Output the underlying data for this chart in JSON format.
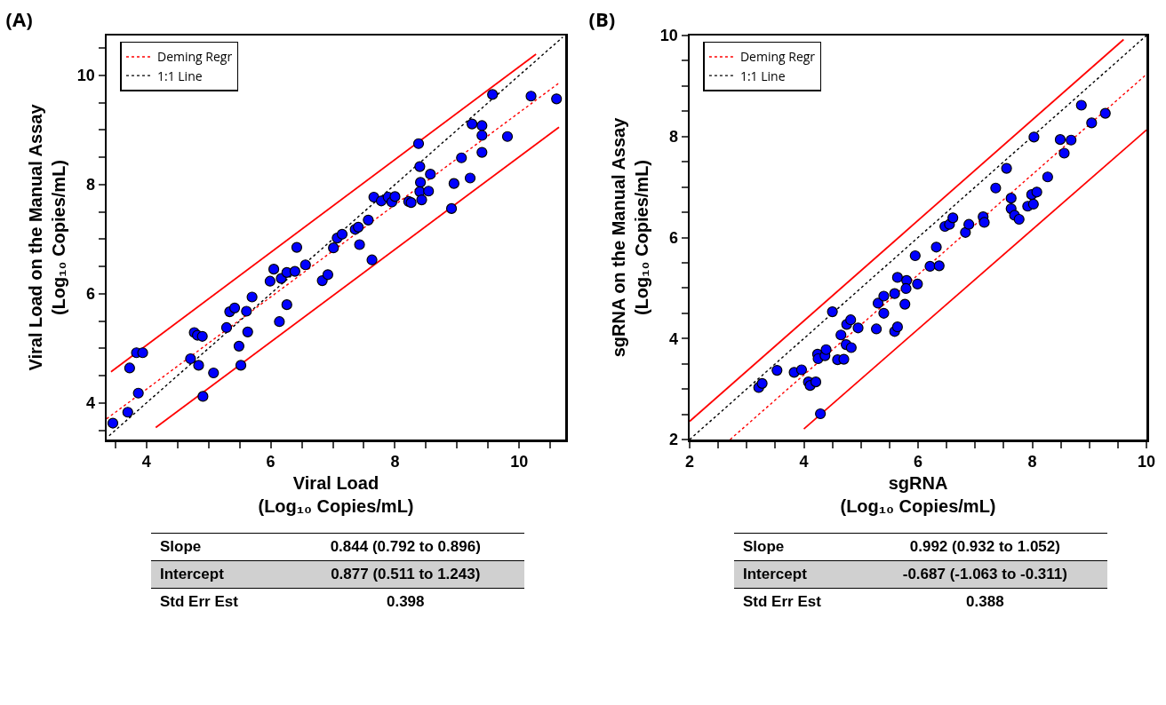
{
  "chart_data": [
    {
      "type": "scatter",
      "title": "(A)",
      "xlabel": "Viral Load\n(Log₁₀ Copies/mL)",
      "ylabel": "Viral Load on the Manual Assay\n(Log₁₀ Copies/mL)",
      "xlim": [
        3.36,
        10.74
      ],
      "ylim": [
        3.33,
        10.73
      ],
      "xticks": [
        {
          "value": 3.5,
          "label": null
        },
        4,
        {
          "value": 4.5,
          "label": null
        },
        {
          "value": 5,
          "label": null
        },
        {
          "value": 5.5,
          "label": null
        },
        6,
        {
          "value": 6.5,
          "label": null
        },
        {
          "value": 7,
          "label": null
        },
        {
          "value": 7.5,
          "label": null
        },
        8,
        {
          "value": 8.5,
          "label": null
        },
        {
          "value": 9,
          "label": null
        },
        {
          "value": 9.5,
          "label": null
        },
        10,
        {
          "value": 10.5,
          "label": null
        }
      ],
      "yticks": [
        {
          "value": 3.5,
          "label": null
        },
        4,
        {
          "value": 4.5,
          "label": null
        },
        {
          "value": 5,
          "label": null
        },
        {
          "value": 5.5,
          "label": null
        },
        6,
        {
          "value": 6.5,
          "label": null
        },
        {
          "value": 7,
          "label": null
        },
        {
          "value": 7.5,
          "label": null
        },
        8,
        {
          "value": 8.5,
          "label": null
        },
        {
          "value": 9,
          "label": null
        },
        {
          "value": 9.5,
          "label": null
        },
        10,
        {
          "value": 10.5,
          "label": null
        }
      ],
      "grid": false,
      "legend": "top left",
      "marker": "circle",
      "series": [
        {
          "color": "#0000ff",
          "x": [
            3.46,
            3.7,
            3.73,
            3.87,
            3.84,
            3.94,
            4.71,
            4.77,
            4.82,
            4.9,
            4.84,
            4.91,
            5.08,
            5.29,
            5.34,
            5.42,
            5.49,
            5.52,
            5.61,
            5.63,
            5.7,
            5.99,
            6.05,
            6.17,
            6.26,
            6.39,
            6.26,
            6.14,
            6.42,
            6.56,
            6.83,
            6.92,
            7.01,
            7.07,
            7.15,
            7.36,
            7.41,
            7.43,
            7.57,
            7.63,
            7.66,
            7.78,
            7.89,
            7.95,
            8.0,
            8.22,
            8.26,
            8.38,
            8.4,
            8.41,
            8.4,
            8.43,
            8.54,
            8.57,
            8.91,
            8.95,
            9.07,
            9.21,
            9.24,
            9.4,
            9.4,
            9.4,
            9.57,
            9.81,
            10.19,
            10.6
          ],
          "values": [
            3.63,
            3.83,
            4.64,
            4.18,
            4.92,
            4.92,
            4.81,
            5.29,
            5.24,
            5.22,
            4.69,
            4.12,
            4.55,
            5.38,
            5.67,
            5.74,
            5.04,
            4.69,
            5.68,
            5.3,
            5.94,
            6.23,
            6.45,
            6.28,
            6.39,
            6.41,
            5.8,
            5.49,
            6.85,
            6.53,
            6.24,
            6.35,
            6.84,
            7.02,
            7.09,
            7.18,
            7.22,
            6.9,
            7.35,
            6.62,
            7.77,
            7.7,
            7.77,
            7.68,
            7.78,
            7.69,
            7.67,
            8.75,
            8.33,
            8.04,
            7.87,
            7.72,
            7.88,
            8.19,
            7.56,
            8.02,
            8.49,
            8.12,
            9.11,
            9.08,
            8.9,
            8.59,
            9.65,
            8.88,
            9.62,
            9.57
          ]
        },
        {
          "type": "line",
          "name": "Deming Regr",
          "color": "#ff0000",
          "line_style": "dotted",
          "marker": "none",
          "x": [
            3.36,
            10.64
          ],
          "values": [
            3.71,
            9.86
          ]
        },
        {
          "type": "line",
          "name": "1:1 Line",
          "color": "#000000",
          "line_style": "dotted",
          "marker": "none",
          "x": [
            3.4,
            10.7
          ],
          "values": [
            3.4,
            10.7
          ]
        },
        {
          "type": "line",
          "color": "#ff0000",
          "line_style": "solid",
          "marker": "none",
          "x": [
            3.43,
            10.27
          ],
          "values": [
            4.57,
            10.39
          ]
        },
        {
          "type": "line",
          "color": "#ff0000",
          "line_style": "solid",
          "marker": "none",
          "x": [
            4.15,
            10.64
          ],
          "values": [
            3.55,
            9.05
          ]
        }
      ],
      "annotations": [
        "Slope",
        "0.844 (0.792 to 0.896)",
        "Intercept",
        "0.877 (0.511 to 1.243)",
        "Std Err Est",
        "0.398"
      ]
    },
    {
      "type": "scatter",
      "title": "(B)",
      "xlabel": "sgRNA\n(Log₁₀ Copies/mL)",
      "ylabel": "sgRNA on the Manual Assay\n(Log₁₀ Copies/mL)",
      "xlim": [
        2,
        10
      ],
      "ylim": [
        2,
        10
      ],
      "xticks": [
        2,
        {
          "value": 2.5,
          "label": null
        },
        {
          "value": 3,
          "label": null
        },
        {
          "value": 3.5,
          "label": null
        },
        4,
        {
          "value": 4.5,
          "label": null
        },
        {
          "value": 5,
          "label": null
        },
        {
          "value": 5.5,
          "label": null
        },
        6,
        {
          "value": 6.5,
          "label": null
        },
        {
          "value": 7,
          "label": null
        },
        {
          "value": 7.5,
          "label": null
        },
        8,
        {
          "value": 8.5,
          "label": null
        },
        {
          "value": 9,
          "label": null
        },
        {
          "value": 9.5,
          "label": null
        },
        10
      ],
      "yticks": [
        2,
        {
          "value": 2.5,
          "label": null
        },
        {
          "value": 3,
          "label": null
        },
        {
          "value": 3.5,
          "label": null
        },
        4,
        {
          "value": 4.5,
          "label": null
        },
        {
          "value": 5,
          "label": null
        },
        {
          "value": 5.5,
          "label": null
        },
        6,
        {
          "value": 6.5,
          "label": null
        },
        {
          "value": 7,
          "label": null
        },
        {
          "value": 7.5,
          "label": null
        },
        8,
        {
          "value": 8.5,
          "label": null
        },
        {
          "value": 9,
          "label": null
        },
        {
          "value": 9.5,
          "label": null
        },
        10
      ],
      "grid": false,
      "legend": "top left",
      "marker": "circle",
      "series": [
        {
          "color": "#0000ff",
          "x": [
            3.21,
            3.27,
            3.53,
            3.83,
            3.96,
            4.08,
            4.11,
            4.21,
            4.29,
            4.24,
            4.25,
            4.37,
            4.39,
            4.5,
            4.59,
            4.7,
            4.65,
            4.74,
            4.83,
            4.75,
            4.82,
            4.95,
            5.27,
            5.3,
            5.4,
            5.4,
            5.59,
            5.64,
            5.59,
            5.64,
            5.8,
            5.79,
            5.77,
            5.99,
            5.95,
            6.21,
            6.37,
            6.32,
            6.47,
            6.55,
            6.61,
            6.83,
            6.89,
            7.14,
            7.16,
            7.36,
            7.55,
            7.63,
            7.63,
            7.69,
            7.77,
            7.92,
            8.02,
            7.99,
            8.08,
            8.03,
            8.27,
            8.49,
            8.68,
            8.56,
            8.86,
            9.04,
            9.28
          ],
          "values": [
            3.03,
            3.11,
            3.37,
            3.33,
            3.38,
            3.14,
            3.07,
            3.14,
            2.51,
            3.69,
            3.6,
            3.66,
            3.78,
            4.53,
            3.58,
            3.59,
            4.07,
            3.88,
            3.82,
            4.28,
            4.37,
            4.21,
            4.19,
            4.7,
            4.84,
            4.5,
            4.14,
            4.23,
            4.89,
            5.21,
            5.15,
            4.99,
            4.68,
            5.08,
            5.64,
            5.43,
            5.44,
            5.81,
            6.22,
            6.26,
            6.39,
            6.1,
            6.26,
            6.41,
            6.3,
            6.98,
            7.37,
            6.78,
            6.57,
            6.44,
            6.36,
            6.62,
            6.66,
            6.85,
            6.9,
            7.99,
            7.2,
            7.94,
            7.93,
            7.67,
            8.62,
            8.27,
            8.46
          ]
        },
        {
          "type": "line",
          "name": "Deming Regr",
          "color": "#ff0000",
          "line_style": "dotted",
          "marker": "none",
          "x": [
            2.71,
            10
          ],
          "values": [
            2,
            9.23
          ]
        },
        {
          "type": "line",
          "name": "1:1 Line",
          "color": "#000000",
          "line_style": "dotted",
          "marker": "none",
          "x": [
            2,
            10
          ],
          "values": [
            2,
            10
          ]
        },
        {
          "type": "line",
          "color": "#ff0000",
          "line_style": "solid",
          "marker": "none",
          "x": [
            2,
            9.6
          ],
          "values": [
            2.36,
            9.92
          ]
        },
        {
          "type": "line",
          "color": "#ff0000",
          "line_style": "solid",
          "marker": "none",
          "x": [
            4,
            10
          ],
          "values": [
            2.21,
            8.13
          ]
        }
      ],
      "annotations": [
        "Slope",
        "0.992 (0.932 to 1.052)",
        "Intercept",
        "-0.687 (-1.063 to -0.311)",
        "Std Err Est",
        "0.388"
      ]
    }
  ]
}
